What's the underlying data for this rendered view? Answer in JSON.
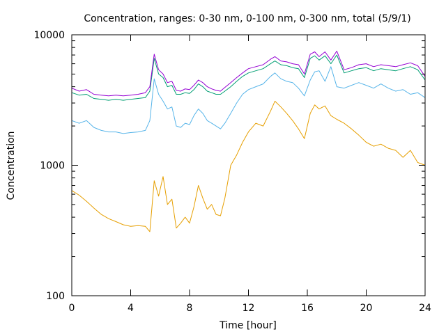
{
  "chart_data": {
    "type": "line",
    "title": "Concentration, ranges: 0-30 nm, 0-100 nm, 0-300 nm, total (5/9/1)",
    "xlabel": "Time [hour]",
    "ylabel": "Concentration",
    "xlim": [
      0,
      24
    ],
    "ylim": [
      100,
      10000
    ],
    "yscale": "log",
    "x_ticks": [
      0,
      4,
      8,
      12,
      16,
      20,
      24
    ],
    "y_ticks": [
      100,
      1000,
      10000
    ],
    "x_tick_labels": [
      "0",
      "4",
      "8",
      "12",
      "16",
      "20",
      "24"
    ],
    "y_tick_labels": [
      "100",
      "1000",
      "10000"
    ],
    "grid": false,
    "legend": "none",
    "series": [
      {
        "color": "#e69f00",
        "x": [
          0,
          0.5,
          1,
          1.5,
          2,
          2.5,
          3,
          3.5,
          4,
          4.5,
          5,
          5.3,
          5.6,
          5.9,
          6.2,
          6.5,
          6.8,
          7.1,
          7.4,
          7.7,
          8,
          8.3,
          8.6,
          8.9,
          9.2,
          9.5,
          9.8,
          10.1,
          10.4,
          10.8,
          11.2,
          11.6,
          12,
          12.5,
          13,
          13.5,
          13.8,
          14.2,
          14.6,
          15,
          15.4,
          15.8,
          16.2,
          16.5,
          16.8,
          17.2,
          17.6,
          18,
          18.5,
          19,
          19.5,
          20,
          20.5,
          21,
          21.5,
          22,
          22.5,
          23,
          23.5,
          24
        ],
        "values": [
          640,
          590,
          530,
          470,
          420,
          390,
          370,
          350,
          340,
          345,
          340,
          310,
          760,
          580,
          820,
          500,
          550,
          330,
          360,
          400,
          360,
          480,
          700,
          560,
          460,
          500,
          420,
          410,
          560,
          1000,
          1200,
          1500,
          1800,
          2100,
          2000,
          2600,
          3100,
          2800,
          2500,
          2200,
          1900,
          1600,
          2500,
          2900,
          2700,
          2850,
          2400,
          2250,
          2100,
          1900,
          1700,
          1500,
          1400,
          1450,
          1350,
          1300,
          1150,
          1300,
          1050,
          1000
        ]
      },
      {
        "color": "#56b4e9",
        "x": [
          0,
          0.5,
          1,
          1.5,
          2,
          2.5,
          3,
          3.5,
          4,
          4.5,
          5,
          5.3,
          5.6,
          5.9,
          6.2,
          6.5,
          6.8,
          7.1,
          7.4,
          7.7,
          8,
          8.3,
          8.6,
          8.9,
          9.2,
          9.5,
          9.8,
          10.1,
          10.4,
          10.8,
          11.2,
          11.6,
          12,
          12.5,
          13,
          13.5,
          13.8,
          14.2,
          14.6,
          15,
          15.4,
          15.8,
          16.2,
          16.5,
          16.8,
          17.2,
          17.6,
          18,
          18.5,
          19,
          19.5,
          20,
          20.5,
          21,
          21.5,
          22,
          22.5,
          23,
          23.5,
          24
        ],
        "values": [
          2200,
          2100,
          2200,
          1950,
          1850,
          1800,
          1800,
          1750,
          1780,
          1800,
          1850,
          2200,
          4600,
          3500,
          3100,
          2700,
          2800,
          2000,
          1950,
          2100,
          2050,
          2400,
          2700,
          2500,
          2200,
          2100,
          2000,
          1900,
          2100,
          2500,
          3000,
          3500,
          3800,
          4000,
          4200,
          4800,
          5100,
          4600,
          4400,
          4300,
          3900,
          3400,
          4500,
          5200,
          5300,
          4400,
          5700,
          4000,
          3900,
          4100,
          4300,
          4100,
          3900,
          4200,
          3900,
          3700,
          3800,
          3500,
          3600,
          3300
        ]
      },
      {
        "color": "#009e73",
        "x": [
          0,
          0.5,
          1,
          1.5,
          2,
          2.5,
          3,
          3.5,
          4,
          4.5,
          5,
          5.3,
          5.6,
          5.9,
          6.2,
          6.5,
          6.8,
          7.1,
          7.4,
          7.7,
          8,
          8.3,
          8.6,
          8.9,
          9.2,
          9.5,
          9.8,
          10.1,
          10.4,
          10.8,
          11.2,
          11.6,
          12,
          12.5,
          13,
          13.5,
          13.8,
          14.2,
          14.6,
          15,
          15.4,
          15.8,
          16.2,
          16.5,
          16.8,
          17.2,
          17.6,
          18,
          18.5,
          19,
          19.5,
          20,
          20.5,
          21,
          21.5,
          22,
          22.5,
          23,
          23.5,
          24
        ],
        "values": [
          3600,
          3450,
          3500,
          3250,
          3200,
          3150,
          3200,
          3150,
          3200,
          3250,
          3300,
          3700,
          6600,
          5000,
          4700,
          4000,
          4100,
          3500,
          3500,
          3600,
          3550,
          3800,
          4200,
          4000,
          3700,
          3600,
          3500,
          3500,
          3700,
          4000,
          4400,
          4800,
          5100,
          5300,
          5500,
          6000,
          6300,
          5900,
          5800,
          5600,
          5500,
          4700,
          6600,
          6900,
          6400,
          6900,
          6000,
          7000,
          5100,
          5300,
          5500,
          5600,
          5300,
          5500,
          5400,
          5300,
          5500,
          5700,
          5400,
          4500
        ]
      },
      {
        "color": "#9400d3",
        "x": [
          0,
          0.5,
          1,
          1.5,
          2,
          2.5,
          3,
          3.5,
          4,
          4.5,
          5,
          5.3,
          5.6,
          5.9,
          6.2,
          6.5,
          6.8,
          7.1,
          7.4,
          7.7,
          8,
          8.3,
          8.6,
          8.9,
          9.2,
          9.5,
          9.8,
          10.1,
          10.4,
          10.8,
          11.2,
          11.6,
          12,
          12.5,
          13,
          13.5,
          13.8,
          14.2,
          14.6,
          15,
          15.4,
          15.8,
          16.2,
          16.5,
          16.8,
          17.2,
          17.6,
          18,
          18.5,
          19,
          19.5,
          20,
          20.5,
          21,
          21.5,
          22,
          22.5,
          23,
          23.5,
          24
        ],
        "values": [
          3900,
          3700,
          3800,
          3500,
          3450,
          3400,
          3450,
          3400,
          3450,
          3500,
          3600,
          4000,
          7100,
          5400,
          5000,
          4300,
          4400,
          3750,
          3700,
          3850,
          3800,
          4100,
          4500,
          4300,
          4000,
          3850,
          3750,
          3700,
          3950,
          4300,
          4700,
          5100,
          5500,
          5700,
          5900,
          6500,
          6800,
          6300,
          6200,
          6000,
          5900,
          5000,
          7100,
          7400,
          6800,
          7400,
          6400,
          7500,
          5400,
          5600,
          5900,
          6000,
          5700,
          5900,
          5800,
          5700,
          5900,
          6100,
          5800,
          4800
        ]
      }
    ]
  }
}
